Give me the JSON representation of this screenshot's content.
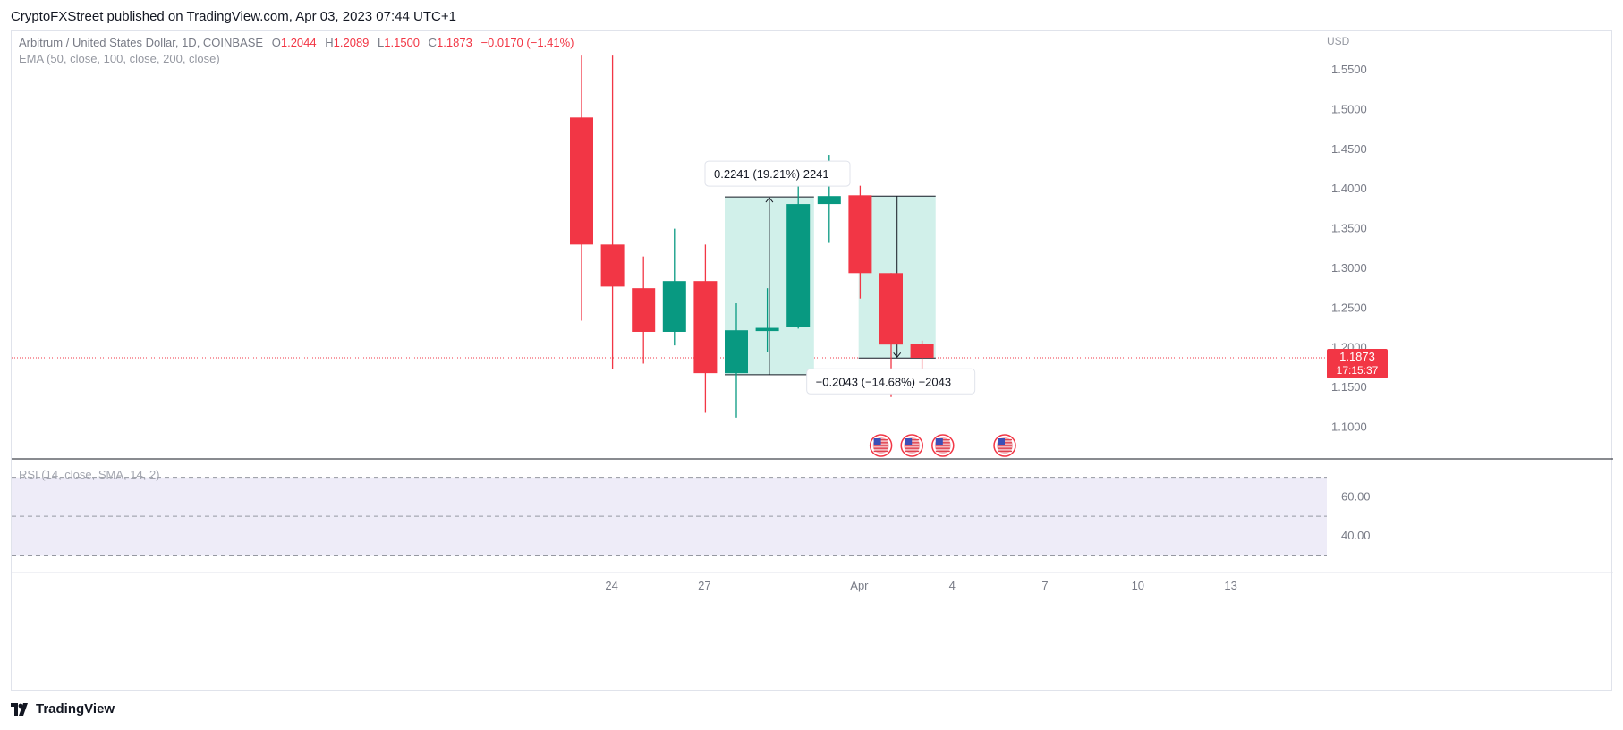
{
  "header": {
    "text": "CryptoFXStreet published on TradingView.com, Apr 03, 2023 07:44 UTC+1"
  },
  "legend": {
    "symbol": "Arbitrum / United States Dollar, 1D, COINBASE",
    "o_label": "O",
    "o_value": "1.2044",
    "h_label": "H",
    "h_value": "1.2089",
    "l_label": "L",
    "l_value": "1.1500",
    "c_label": "C",
    "c_value": "1.1873",
    "change": "−0.0170 (−1.41%)",
    "ema": "EMA (50, close, 100, close, 200, close)"
  },
  "price_axis": {
    "currency": "USD",
    "last_price": "1.1873",
    "countdown": "17:15:37"
  },
  "rsi": {
    "label": "RSI (14, close, SMA, 14, 2)"
  },
  "measure": {
    "up_label": "0.2241 (19.21%) 2241",
    "down_label": "−0.2043 (−14.68%) −2043"
  },
  "brand": {
    "text": "TradingView"
  },
  "colors": {
    "up": "#089981",
    "down": "#f23645",
    "measure_fill": "#d1f0ea",
    "rsi_band": "#eeecf8",
    "grid": "#e0e3eb"
  },
  "chart_data": {
    "type": "candlestick",
    "ylim": [
      1.06,
      1.585
    ],
    "y_ticks": [
      "1.1000",
      "1.1500",
      "1.2000",
      "1.2500",
      "1.3000",
      "1.3500",
      "1.4000",
      "1.4500",
      "1.5000",
      "1.5500"
    ],
    "x_ticks": [
      {
        "label": "24",
        "index": 1
      },
      {
        "label": "27",
        "index": 4
      },
      {
        "label": "Apr",
        "index": 9
      },
      {
        "label": "4",
        "index": 12
      },
      {
        "label": "7",
        "index": 15
      },
      {
        "label": "10",
        "index": 18
      },
      {
        "label": "13",
        "index": 21
      }
    ],
    "candles": [
      {
        "o": 1.49,
        "h": 1.568,
        "l": 1.234,
        "c": 1.33
      },
      {
        "o": 1.33,
        "h": 1.568,
        "l": 1.173,
        "c": 1.277
      },
      {
        "o": 1.275,
        "h": 1.315,
        "l": 1.18,
        "c": 1.22
      },
      {
        "o": 1.22,
        "h": 1.35,
        "l": 1.203,
        "c": 1.284
      },
      {
        "o": 1.284,
        "h": 1.33,
        "l": 1.118,
        "c": 1.168
      },
      {
        "o": 1.168,
        "h": 1.256,
        "l": 1.112,
        "c": 1.222
      },
      {
        "o": 1.221,
        "h": 1.275,
        "l": 1.195,
        "c": 1.225
      },
      {
        "o": 1.226,
        "h": 1.43,
        "l": 1.224,
        "c": 1.381
      },
      {
        "o": 1.381,
        "h": 1.443,
        "l": 1.332,
        "c": 1.391
      },
      {
        "o": 1.392,
        "h": 1.404,
        "l": 1.262,
        "c": 1.294
      },
      {
        "o": 1.294,
        "h": 1.294,
        "l": 1.138,
        "c": 1.204
      },
      {
        "o": 1.2044,
        "h": 1.2089,
        "l": 1.15,
        "c": 1.1873
      }
    ],
    "first_candle_x_index": -0.95,
    "last_price_line": 1.1873,
    "rsi_levels": [
      70,
      60,
      50,
      40,
      30
    ],
    "rsi_ticks": [
      "60.00",
      "40.00"
    ],
    "rsi_ylim": [
      27,
      74
    ],
    "event_flags_x_index": [
      9.7,
      10.7,
      11.7,
      13.7
    ],
    "measure_up": {
      "from_index": 5,
      "to_index": 8,
      "low": 1.166,
      "high": 1.39
    },
    "measure_down": {
      "from_index": 8.95,
      "to_index": 11.9,
      "high": 1.391,
      "low": 1.187
    }
  }
}
